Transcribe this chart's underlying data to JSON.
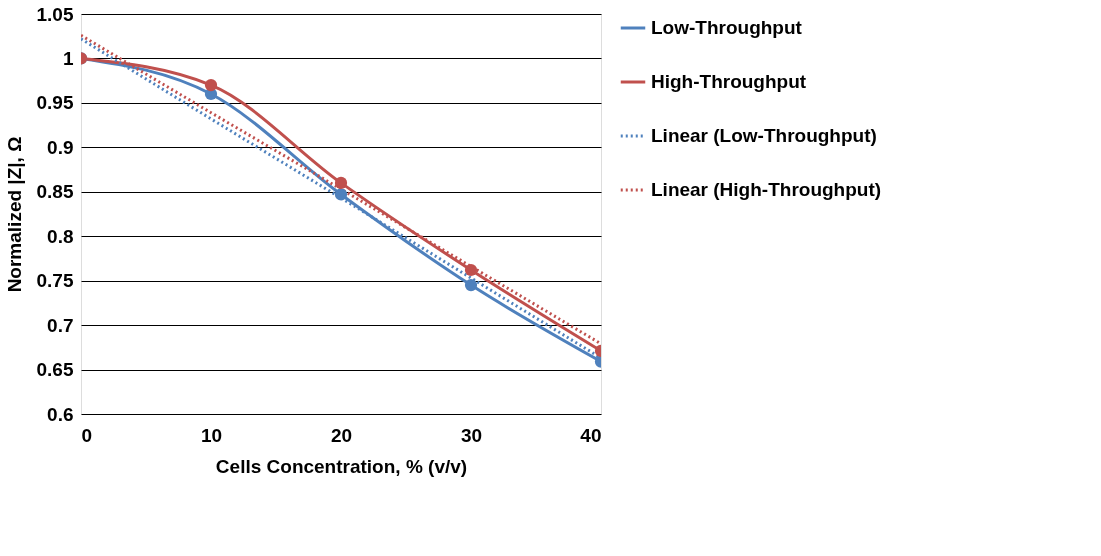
{
  "chart_data": {
    "type": "line",
    "xlabel": "Cells Concentration, % (v/v)",
    "ylabel": "Normalized |Z|, Ω",
    "x": [
      0,
      10,
      20,
      30,
      40
    ],
    "series": [
      {
        "name": "Low-Throughput",
        "color": "#4f81bd",
        "values": [
          1,
          0.96,
          0.847,
          0.745,
          0.659
        ],
        "marker": "circle",
        "line_style": "solid"
      },
      {
        "name": "High-Throughput",
        "color": "#c0504d",
        "values": [
          1,
          0.97,
          0.86,
          0.762,
          0.671
        ],
        "marker": "circle",
        "line_style": "solid"
      },
      {
        "name": "Linear (Low-Throughput)",
        "color": "#4f81bd",
        "values": [
          1.022,
          0.932,
          0.843,
          0.753,
          0.663
        ],
        "marker": "none",
        "line_style": "dotted"
      },
      {
        "name": "Linear (High-Throughput)",
        "color": "#c0504d",
        "values": [
          1.026,
          0.939,
          0.853,
          0.766,
          0.679
        ],
        "marker": "none",
        "line_style": "dotted"
      }
    ],
    "xlim": [
      0,
      40
    ],
    "xticks": [
      0,
      10,
      20,
      30,
      40
    ],
    "ylim": [
      0.6,
      1.05
    ],
    "yticks": [
      0.6,
      0.65,
      0.7,
      0.75,
      0.8,
      0.85,
      0.9,
      0.95,
      1,
      1.05
    ],
    "grid": "y",
    "legend": "right"
  }
}
